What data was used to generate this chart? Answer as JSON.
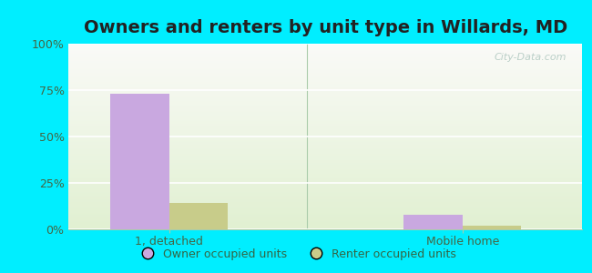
{
  "title": "Owners and renters by unit type in Willards, MD",
  "categories": [
    "1, detached",
    "Mobile home"
  ],
  "owner_values": [
    73,
    8
  ],
  "renter_values": [
    14,
    2
  ],
  "owner_color": "#c9a8e0",
  "renter_color": "#c8cc8a",
  "ylim": [
    0,
    100
  ],
  "yticks": [
    0,
    25,
    50,
    75,
    100
  ],
  "ytick_labels": [
    "0%",
    "25%",
    "50%",
    "75%",
    "100%"
  ],
  "bar_width": 0.32,
  "outer_bg": "#00eeff",
  "watermark": "City-Data.com",
  "legend_owner": "Owner occupied units",
  "legend_renter": "Renter occupied units",
  "title_fontsize": 14,
  "tick_fontsize": 9,
  "legend_fontsize": 9,
  "separator_x": 1.25,
  "x_positions": [
    0.5,
    2.1
  ],
  "xlim": [
    -0.05,
    2.75
  ]
}
